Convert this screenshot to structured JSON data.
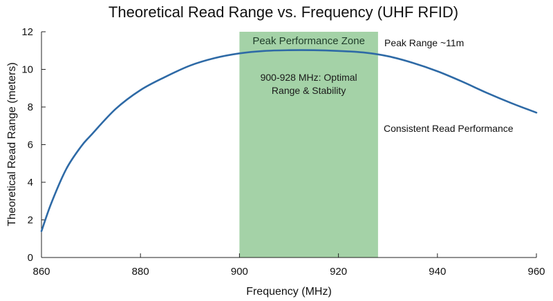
{
  "chart_data": {
    "type": "line",
    "title": "Theoretical Read Range vs. Frequency (UHF RFID)",
    "xlabel": "Frequency (MHz)",
    "ylabel": "Theoretical Read Range (meters)",
    "xlim": [
      860,
      960
    ],
    "ylim": [
      0,
      12
    ],
    "xticks": [
      860,
      880,
      900,
      920,
      940,
      960
    ],
    "yticks": [
      0,
      2,
      4,
      6,
      8,
      10,
      12
    ],
    "series": [
      {
        "name": "Read Range",
        "color": "#2e6aa6",
        "x": [
          860,
          862,
          865,
          868,
          870,
          875,
          880,
          885,
          890,
          895,
          900,
          905,
          910,
          915,
          920,
          925,
          930,
          935,
          940,
          945,
          950,
          955,
          960
        ],
        "y": [
          1.4,
          2.9,
          4.7,
          5.9,
          6.5,
          7.9,
          8.9,
          9.6,
          10.2,
          10.6,
          10.85,
          10.98,
          11.02,
          11.02,
          10.98,
          10.9,
          10.7,
          10.35,
          9.9,
          9.35,
          8.75,
          8.2,
          7.7
        ]
      }
    ],
    "shaded_region": {
      "x_start": 900,
      "x_end": 928,
      "color": "#9fd0a2",
      "label": "Peak Performance Zone",
      "text_line1": "900-928 MHz: Optimal",
      "text_line2": "Range & Stability"
    },
    "annotations": {
      "peak": "Peak Range ~11m",
      "consistent": "Consistent Read Performance"
    },
    "grid": false
  }
}
